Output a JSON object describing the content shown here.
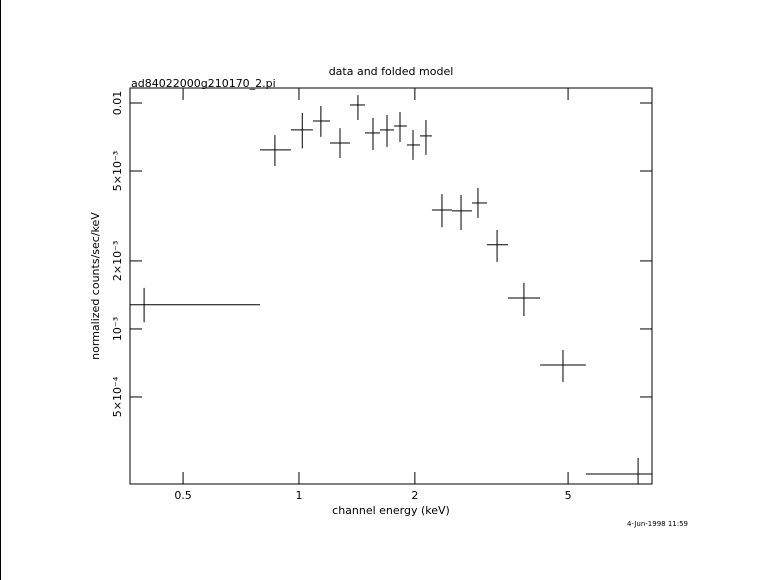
{
  "chart_data": {
    "type": "errorbar",
    "title": "data and folded model",
    "subtitle": "ad84022000g210170_2.pi",
    "xlabel": "channel energy (keV)",
    "ylabel": "normalized counts/sec/keV",
    "timestamp": "4-Jun-1998 11:59",
    "xscale": "log",
    "yscale": "log",
    "xlim": [
      0.364,
      8.26
    ],
    "ylim": [
      0.000206,
      0.01165
    ],
    "xticks": [
      0.5,
      1,
      2,
      5
    ],
    "yticks": [
      {
        "value": 0.01,
        "label": "0.01"
      },
      {
        "value": 0.005,
        "label": "5×10⁻³"
      },
      {
        "value": 0.002,
        "label": "2×10⁻³"
      },
      {
        "value": 0.001,
        "label": "10⁻³"
      },
      {
        "value": 0.0005,
        "label": "5×10⁻⁴"
      }
    ],
    "series": [
      {
        "color": "#000000",
        "x": [
          0.396,
          0.866,
          1.02,
          1.14,
          1.278,
          1.423,
          1.557,
          1.693,
          1.83,
          1.978,
          2.137,
          2.352,
          2.636,
          2.917,
          3.27,
          3.84,
          4.85,
          7.6
        ],
        "x_low": [
          0.364,
          0.792,
          0.953,
          1.087,
          1.204,
          1.357,
          1.484,
          1.623,
          1.766,
          1.907,
          2.062,
          2.215,
          2.497,
          2.815,
          3.079,
          3.49,
          4.23,
          5.56
        ],
        "x_high": [
          0.792,
          0.953,
          1.087,
          1.204,
          1.357,
          1.484,
          1.623,
          1.766,
          1.907,
          2.062,
          2.215,
          2.497,
          2.815,
          3.079,
          3.49,
          4.23,
          5.56,
          8.26
        ],
        "values": [
          0.00128,
          0.0062,
          0.0076,
          0.00832,
          0.00665,
          0.0098,
          0.00737,
          0.0076,
          0.00791,
          0.00652,
          0.00715,
          0.00336,
          0.00333,
          0.00361,
          0.00236,
          0.00137,
          0.000693,
          0.000228
        ],
        "y_low": [
          0.00107,
          0.00526,
          0.0063,
          0.00708,
          0.00571,
          0.00841,
          0.00619,
          0.00638,
          0.00672,
          0.0056,
          0.00589,
          0.00282,
          0.00274,
          0.0031,
          0.00198,
          0.00114,
          0.000582,
          0.00019
        ],
        "y_high": [
          0.00152,
          0.00721,
          0.00903,
          0.0097,
          0.00774,
          0.01084,
          0.00859,
          0.00885,
          0.00912,
          0.0076,
          0.00841,
          0.00395,
          0.00392,
          0.00421,
          0.00274,
          0.0016,
          0.000807,
          0.000269
        ]
      }
    ]
  }
}
